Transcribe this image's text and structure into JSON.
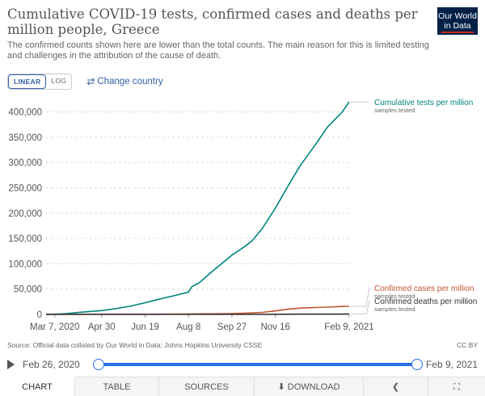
{
  "header": {
    "title": "Cumulative COVID-19 tests, confirmed cases and deaths per million people, Greece",
    "subtitle": "The confirmed counts shown here are lower than the total counts. The main reason for this is limited testing and challenges in the attribution of the cause of death.",
    "logo_line1": "Our World",
    "logo_line2": "in Data"
  },
  "controls": {
    "linear_label": "LINEAR",
    "log_label": "LOG",
    "change_country_label": "Change country"
  },
  "chart_data": {
    "type": "line",
    "xlabel": "",
    "ylabel": "",
    "ylim": [
      0,
      420000
    ],
    "y_ticks": [
      0,
      50000,
      100000,
      150000,
      200000,
      250000,
      300000,
      350000,
      400000
    ],
    "y_tick_labels": [
      "0",
      "50,000",
      "100,000",
      "150,000",
      "200,000",
      "250,000",
      "300,000",
      "350,000",
      "400,000"
    ],
    "x_ticks": [
      "2020-03-07",
      "2020-04-30",
      "2020-06-19",
      "2020-08-08",
      "2020-09-27",
      "2020-11-16",
      "2021-02-09"
    ],
    "x_tick_labels": [
      "Mar 7, 2020",
      "Apr 30",
      "Jun 19",
      "Aug 8",
      "Sep 27",
      "Nov 16",
      "Feb 9, 2021"
    ],
    "grid": true,
    "legend": "right, labels at line ends",
    "series": [
      {
        "name": "Cumulative tests per million",
        "note": "samples tested",
        "color": "#00847e",
        "points": [
          [
            "2020-02-26",
            0
          ],
          [
            "2020-03-07",
            300
          ],
          [
            "2020-03-20",
            1500
          ],
          [
            "2020-04-01",
            3500
          ],
          [
            "2020-04-15",
            5500
          ],
          [
            "2020-04-30",
            7500
          ],
          [
            "2020-05-15",
            11000
          ],
          [
            "2020-06-01",
            16000
          ],
          [
            "2020-06-19",
            23000
          ],
          [
            "2020-07-05",
            30000
          ],
          [
            "2020-07-20",
            36000
          ],
          [
            "2020-08-01",
            41000
          ],
          [
            "2020-08-08",
            44000
          ],
          [
            "2020-08-12",
            55000
          ],
          [
            "2020-08-20",
            62000
          ],
          [
            "2020-09-01",
            80000
          ],
          [
            "2020-09-15",
            100000
          ],
          [
            "2020-09-27",
            117000
          ],
          [
            "2020-10-10",
            132000
          ],
          [
            "2020-10-20",
            145000
          ],
          [
            "2020-11-01",
            170000
          ],
          [
            "2020-11-16",
            210000
          ],
          [
            "2020-12-01",
            255000
          ],
          [
            "2020-12-15",
            295000
          ],
          [
            "2021-01-01",
            335000
          ],
          [
            "2021-01-15",
            370000
          ],
          [
            "2021-02-01",
            400000
          ],
          [
            "2021-02-09",
            420000
          ]
        ]
      },
      {
        "name": "Confirmed cases per million",
        "note": "samples tested",
        "color": "#c15533",
        "points": [
          [
            "2020-02-26",
            0
          ],
          [
            "2020-03-07",
            5
          ],
          [
            "2020-04-30",
            250
          ],
          [
            "2020-06-19",
            310
          ],
          [
            "2020-08-08",
            580
          ],
          [
            "2020-09-27",
            1600
          ],
          [
            "2020-10-20",
            2900
          ],
          [
            "2020-11-01",
            4000
          ],
          [
            "2020-11-16",
            6900
          ],
          [
            "2020-12-01",
            10200
          ],
          [
            "2020-12-15",
            12500
          ],
          [
            "2021-01-01",
            13500
          ],
          [
            "2021-01-15",
            14400
          ],
          [
            "2021-02-01",
            15600
          ],
          [
            "2021-02-09",
            16000
          ]
        ]
      },
      {
        "name": "Confirmed deaths per million",
        "note": "samples tested",
        "color": "#333333",
        "points": [
          [
            "2020-02-26",
            0
          ],
          [
            "2020-04-30",
            13
          ],
          [
            "2020-06-19",
            18
          ],
          [
            "2020-08-08",
            20
          ],
          [
            "2020-09-27",
            38
          ],
          [
            "2020-11-16",
            120
          ],
          [
            "2020-12-15",
            450
          ],
          [
            "2021-01-15",
            530
          ],
          [
            "2021-02-09",
            600
          ]
        ]
      }
    ]
  },
  "footer": {
    "source": "Source: Official data collated by Our World in Data; Johns Hopkins University CSSE",
    "license": "CC BY"
  },
  "timeline": {
    "start_date": "Feb 26, 2020",
    "end_date": "Feb 9, 2021",
    "range_start_fraction": 0,
    "range_end_fraction": 1
  },
  "tabs": [
    {
      "label": "CHART"
    },
    {
      "label": "TABLE"
    },
    {
      "label": "SOURCES"
    },
    {
      "label": "DOWNLOAD"
    }
  ],
  "icons": {
    "swap": "swap-arrows-icon",
    "download": "download-icon",
    "share": "share-icon",
    "expand": "expand-icon"
  }
}
